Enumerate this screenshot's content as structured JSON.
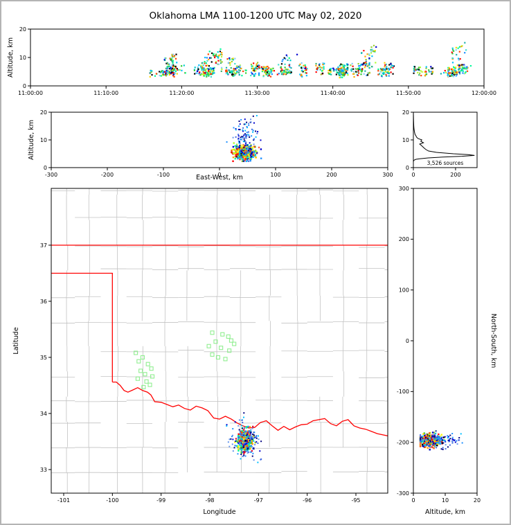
{
  "title": "Oklahoma LMA 1100-1200 UTC May 02, 2020",
  "palette": {
    "streak": [
      "#00ced1",
      "#20b2aa",
      "#32cd32",
      "#3cb371",
      "#00fa9a",
      "#1e90ff",
      "#00bfff",
      "#87cefa",
      "#adff2f",
      "#ffd700",
      "#ffa500",
      "#ff4500",
      "#ff0000",
      "#0000cd",
      "#000000",
      "#9acd32",
      "#00ff7f",
      "#40e0d0"
    ],
    "core": [
      "#ff0000",
      "#ff4500",
      "#ffa500",
      "#ffd700",
      "#adff2f",
      "#32cd32",
      "#00fa9a",
      "#00ced1",
      "#1e90ff",
      "#0000cd",
      "#000000",
      "#dc143c",
      "#9acd32",
      "#ff6347",
      "#ffff00"
    ],
    "halo": [
      "#0000cd",
      "#1e90ff",
      "#00bfff",
      "#4169e1",
      "#000080",
      "#6495ed"
    ]
  },
  "chart_data": [
    {
      "id": "time-altitude",
      "type": "scatter",
      "xlabel": "",
      "ylabel": "Altitude, km",
      "xlim_seconds": [
        0,
        3600
      ],
      "ylim": [
        0,
        20
      ],
      "xticks": [
        {
          "v": 0,
          "label": "11:00:00"
        },
        {
          "v": 600,
          "label": "11:10:00"
        },
        {
          "v": 1200,
          "label": "11:20:00"
        },
        {
          "v": 1800,
          "label": "11:30:00"
        },
        {
          "v": 2400,
          "label": "11:40:00"
        },
        {
          "v": 3000,
          "label": "11:50:00"
        },
        {
          "v": 3600,
          "label": "12:00:00"
        }
      ],
      "yticks": [
        {
          "v": 0,
          "label": "0"
        },
        {
          "v": 10,
          "label": "10"
        },
        {
          "v": 20,
          "label": "20"
        }
      ],
      "clusters": [
        {
          "kind": "streaks",
          "n_streaks": 62,
          "t_start": 960,
          "t_dense": [
            1200,
            2100
          ],
          "t_end": 3600,
          "alt_base": [
            2.8,
            4.2
          ],
          "alt_top_normal": [
            5.5,
            8.5
          ],
          "alt_top_tall": [
            10,
            17
          ],
          "tall_prob": 0.2,
          "pts_min": 4,
          "pts_max": 32,
          "palette": "streak"
        }
      ]
    },
    {
      "id": "eastwest-altitude",
      "type": "scatter",
      "xlabel": "East-West, km",
      "ylabel": "Altitude, km",
      "xlim": [
        -300,
        300
      ],
      "ylim": [
        0,
        20
      ],
      "xticks": [
        {
          "v": -300,
          "label": "-300"
        },
        {
          "v": -200,
          "label": "-200"
        },
        {
          "v": -100,
          "label": "-100"
        },
        {
          "v": 0,
          "label": "0"
        },
        {
          "v": 100,
          "label": "100"
        },
        {
          "v": 200,
          "label": "200"
        },
        {
          "v": 300,
          "label": "300"
        }
      ],
      "yticks": [
        {
          "v": 0,
          "label": "0"
        },
        {
          "v": 10,
          "label": "10"
        },
        {
          "v": 20,
          "label": "20"
        }
      ],
      "clusters": [
        {
          "kind": "gauss",
          "n": 430,
          "cx": 45,
          "cy": 5.4,
          "sx": 9,
          "sy": 1.3,
          "clip_y": [
            2.3,
            20
          ],
          "palette": "core",
          "size": 2.4
        },
        {
          "kind": "gauss",
          "n": 130,
          "cx": 45,
          "cy": 9.5,
          "sx": 11,
          "sy": 4.2,
          "clip_y": [
            2.3,
            20
          ],
          "palette": "halo",
          "size": 2
        }
      ]
    },
    {
      "id": "altitude-histogram",
      "type": "line",
      "annotation": "3,526 sources",
      "color": "#000000",
      "xlim": [
        0,
        302
      ],
      "ylim": [
        0,
        20
      ],
      "xticks": [
        {
          "v": 0,
          "label": "0"
        },
        {
          "v": 200,
          "label": "200"
        }
      ],
      "yticks": [
        {
          "v": 0,
          "label": "0"
        },
        {
          "v": 10,
          "label": "10"
        },
        {
          "v": 20,
          "label": "20"
        }
      ],
      "profile": [
        [
          20,
          0
        ],
        [
          17,
          1
        ],
        [
          15,
          2
        ],
        [
          14,
          3
        ],
        [
          13,
          5
        ],
        [
          12,
          8
        ],
        [
          11.5,
          12
        ],
        [
          11,
          15
        ],
        [
          10.5,
          22
        ],
        [
          10,
          40
        ],
        [
          9.5,
          35
        ],
        [
          9,
          48
        ],
        [
          8.5,
          30
        ],
        [
          8,
          38
        ],
        [
          7.5,
          45
        ],
        [
          7,
          52
        ],
        [
          6.5,
          60
        ],
        [
          6,
          72
        ],
        [
          5.5,
          110
        ],
        [
          5,
          190
        ],
        [
          4.7,
          260
        ],
        [
          4.4,
          290
        ],
        [
          4.1,
          230
        ],
        [
          3.8,
          140
        ],
        [
          3.5,
          70
        ],
        [
          3.2,
          30
        ],
        [
          3,
          12
        ],
        [
          2.7,
          4
        ],
        [
          2.5,
          1
        ],
        [
          2,
          0
        ],
        [
          0,
          0
        ]
      ]
    },
    {
      "id": "map",
      "type": "scatter",
      "xlabel": "Longitude",
      "ylabel": "Latitude",
      "xlim": [
        -101.256,
        -94.345
      ],
      "ylim": [
        32.58,
        38.012
      ],
      "xticks": [
        {
          "v": -101,
          "label": "-101"
        },
        {
          "v": -100,
          "label": "-100"
        },
        {
          "v": -99,
          "label": "-99"
        },
        {
          "v": -98,
          "label": "-98"
        },
        {
          "v": -97,
          "label": "-97"
        },
        {
          "v": -96,
          "label": "-96"
        },
        {
          "v": -95,
          "label": "-95"
        }
      ],
      "yticks": [
        {
          "v": 37,
          "label": "37"
        },
        {
          "v": 36,
          "label": "36"
        },
        {
          "v": 35,
          "label": "35"
        },
        {
          "v": 34,
          "label": "34"
        },
        {
          "v": 33,
          "label": "33"
        }
      ],
      "county_grid": {
        "color": "#c2c2c2",
        "lon_step": 0.53,
        "lat_step": 0.45,
        "keep_prob": 0.84
      },
      "state_border": {
        "color": "#ff0000",
        "polylines": [
          [
            [
              -101.256,
              37
            ],
            [
              -94.345,
              37
            ]
          ],
          [
            [
              -101.256,
              36.5
            ],
            [
              -100.0,
              36.5
            ],
            [
              -100.0,
              34.56
            ]
          ],
          [
            [
              -100.0,
              34.56
            ],
            [
              -99.92,
              34.56
            ],
            [
              -99.84,
              34.5
            ],
            [
              -99.76,
              34.41
            ],
            [
              -99.68,
              34.38
            ],
            [
              -99.58,
              34.42
            ],
            [
              -99.48,
              34.46
            ],
            [
              -99.38,
              34.41
            ],
            [
              -99.28,
              34.38
            ],
            [
              -99.21,
              34.33
            ],
            [
              -99.13,
              34.21
            ],
            [
              -99.0,
              34.2
            ],
            [
              -98.88,
              34.16
            ],
            [
              -98.76,
              34.12
            ],
            [
              -98.64,
              34.15
            ],
            [
              -98.52,
              34.09
            ],
            [
              -98.4,
              34.06
            ],
            [
              -98.28,
              34.13
            ],
            [
              -98.16,
              34.1
            ],
            [
              -98.04,
              34.05
            ],
            [
              -97.92,
              33.92
            ],
            [
              -97.8,
              33.9
            ],
            [
              -97.68,
              33.95
            ],
            [
              -97.56,
              33.9
            ],
            [
              -97.44,
              33.83
            ],
            [
              -97.32,
              33.78
            ],
            [
              -97.2,
              33.74
            ],
            [
              -97.08,
              33.75
            ],
            [
              -96.96,
              33.84
            ],
            [
              -96.84,
              33.87
            ],
            [
              -96.72,
              33.78
            ],
            [
              -96.6,
              33.7
            ],
            [
              -96.48,
              33.77
            ],
            [
              -96.36,
              33.71
            ],
            [
              -96.24,
              33.76
            ],
            [
              -96.12,
              33.8
            ],
            [
              -96.0,
              33.81
            ],
            [
              -95.88,
              33.87
            ],
            [
              -95.76,
              33.89
            ],
            [
              -95.64,
              33.91
            ],
            [
              -95.52,
              33.82
            ],
            [
              -95.4,
              33.78
            ],
            [
              -95.28,
              33.86
            ],
            [
              -95.16,
              33.89
            ],
            [
              -95.04,
              33.78
            ],
            [
              -94.92,
              33.74
            ],
            [
              -94.8,
              33.72
            ],
            [
              -94.68,
              33.68
            ],
            [
              -94.56,
              33.64
            ],
            [
              -94.34,
              33.6
            ]
          ]
        ]
      },
      "green_squares": {
        "color": "#90ee90",
        "size": 5,
        "points": [
          [
            -99.52,
            35.08
          ],
          [
            -99.38,
            35.0
          ],
          [
            -99.46,
            34.93
          ],
          [
            -99.27,
            34.88
          ],
          [
            -99.2,
            34.8
          ],
          [
            -99.42,
            34.76
          ],
          [
            -99.33,
            34.7
          ],
          [
            -99.18,
            34.66
          ],
          [
            -99.48,
            34.62
          ],
          [
            -99.3,
            34.57
          ],
          [
            -99.23,
            34.51
          ],
          [
            -99.36,
            34.47
          ],
          [
            -97.95,
            35.44
          ],
          [
            -97.74,
            35.41
          ],
          [
            -97.56,
            35.3
          ],
          [
            -97.88,
            35.28
          ],
          [
            -98.02,
            35.2
          ],
          [
            -97.77,
            35.17
          ],
          [
            -97.6,
            35.12
          ],
          [
            -97.95,
            35.05
          ],
          [
            -97.83,
            35.0
          ],
          [
            -97.68,
            34.97
          ],
          [
            -97.5,
            35.24
          ],
          [
            -97.62,
            35.37
          ]
        ]
      },
      "clusters": [
        {
          "kind": "gauss",
          "n": 430,
          "cx": -97.28,
          "cy": 33.51,
          "sx": 0.07,
          "sy": 0.09,
          "palette": "core",
          "size": 2.4
        },
        {
          "kind": "gauss",
          "n": 120,
          "cx": -97.28,
          "cy": 33.5,
          "sx": 0.16,
          "sy": 0.17,
          "palette": "halo",
          "size": 2
        }
      ]
    },
    {
      "id": "altitude-northsouth",
      "type": "scatter",
      "xlabel": "Altitude, km",
      "ylabel": "North-South, km",
      "xlim": [
        0,
        20
      ],
      "ylim": [
        -300,
        300
      ],
      "xticks": [
        {
          "v": 0,
          "label": "0"
        },
        {
          "v": 10,
          "label": "10"
        },
        {
          "v": 20,
          "label": "20"
        }
      ],
      "yticks": [
        {
          "v": 300,
          "label": "300"
        },
        {
          "v": 200,
          "label": "200"
        },
        {
          "v": 100,
          "label": "100"
        },
        {
          "v": 0,
          "label": "0"
        },
        {
          "v": -100,
          "label": "-100"
        },
        {
          "v": -200,
          "label": "-200"
        },
        {
          "v": -300,
          "label": "-300"
        }
      ],
      "clusters": [
        {
          "kind": "gauss",
          "n": 430,
          "cx": 5.2,
          "cy": -196,
          "sx": 1.7,
          "sy": 6,
          "clip_x": [
            2.2,
            20
          ],
          "palette": "core",
          "size": 2.4
        },
        {
          "kind": "gauss",
          "n": 120,
          "cx": 8,
          "cy": -196,
          "sx": 3.6,
          "sy": 7,
          "clip_x": [
            2.2,
            20
          ],
          "palette": "halo",
          "size": 2
        }
      ]
    }
  ]
}
